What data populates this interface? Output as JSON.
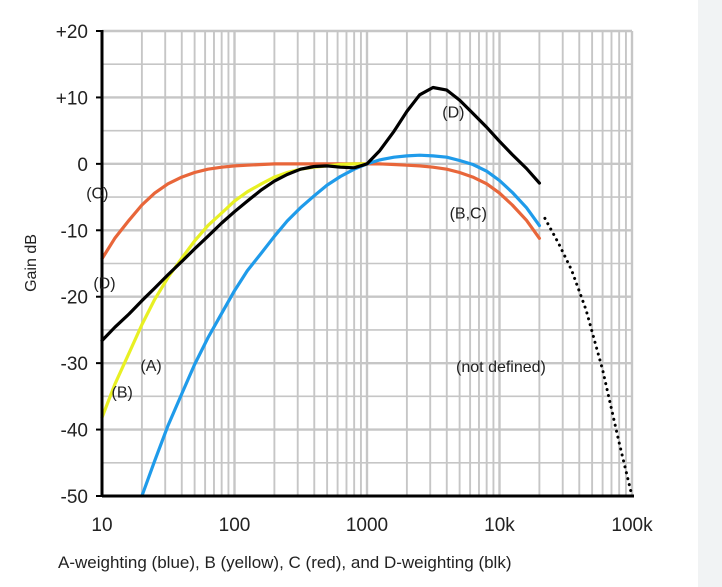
{
  "chart_data": {
    "type": "line",
    "xscale": "log",
    "xlim": [
      10,
      100000
    ],
    "ylim": [
      -50,
      20
    ],
    "ylabel": "Gain dB",
    "xlabel": "A-weighting (blue), B (yellow), C (red), and D-weighting (blk)",
    "grid": true,
    "x_ticks": [
      {
        "value": 10,
        "label": "10"
      },
      {
        "value": 100,
        "label": "100"
      },
      {
        "value": 1000,
        "label": "1000"
      },
      {
        "value": 10000,
        "label": "10k"
      },
      {
        "value": 100000,
        "label": "100k"
      }
    ],
    "y_ticks": [
      {
        "value": 20,
        "label": "+20"
      },
      {
        "value": 10,
        "label": "+10"
      },
      {
        "value": 0,
        "label": "0"
      },
      {
        "value": -10,
        "label": "-10"
      },
      {
        "value": -20,
        "label": "-20"
      },
      {
        "value": -30,
        "label": "-30"
      },
      {
        "value": -40,
        "label": "-40"
      },
      {
        "value": -50,
        "label": "-50"
      }
    ],
    "series": [
      {
        "name": "A-weighting",
        "color": "#1f9bea",
        "style": "solid",
        "points": [
          [
            20,
            -50
          ],
          [
            25,
            -44.7
          ],
          [
            31.5,
            -39.4
          ],
          [
            40,
            -34.6
          ],
          [
            50,
            -30.2
          ],
          [
            63,
            -26.2
          ],
          [
            80,
            -22.5
          ],
          [
            100,
            -19.1
          ],
          [
            125,
            -16.1
          ],
          [
            160,
            -13.4
          ],
          [
            200,
            -10.9
          ],
          [
            250,
            -8.6
          ],
          [
            315,
            -6.6
          ],
          [
            400,
            -4.8
          ],
          [
            500,
            -3.2
          ],
          [
            630,
            -1.9
          ],
          [
            800,
            -0.8
          ],
          [
            1000,
            0
          ],
          [
            1250,
            0.6
          ],
          [
            1600,
            1.0
          ],
          [
            2000,
            1.2
          ],
          [
            2500,
            1.3
          ],
          [
            3150,
            1.2
          ],
          [
            4000,
            1.0
          ],
          [
            5000,
            0.5
          ],
          [
            6300,
            -0.1
          ],
          [
            8000,
            -1.1
          ],
          [
            10000,
            -2.5
          ],
          [
            12500,
            -4.3
          ],
          [
            16000,
            -6.6
          ],
          [
            20000,
            -9.3
          ]
        ]
      },
      {
        "name": "B-weighting",
        "color": "#e8f023",
        "style": "solid",
        "points": [
          [
            10,
            -38.2
          ],
          [
            12.5,
            -33.2
          ],
          [
            16,
            -28.5
          ],
          [
            20,
            -24.2
          ],
          [
            25,
            -20.4
          ],
          [
            31.5,
            -17.1
          ],
          [
            40,
            -14.2
          ],
          [
            50,
            -11.6
          ],
          [
            63,
            -9.3
          ],
          [
            80,
            -7.4
          ],
          [
            100,
            -5.6
          ],
          [
            125,
            -4.2
          ],
          [
            160,
            -3.0
          ],
          [
            200,
            -2.0
          ],
          [
            250,
            -1.3
          ],
          [
            315,
            -0.8
          ],
          [
            400,
            -0.5
          ],
          [
            500,
            -0.3
          ],
          [
            630,
            -0.1
          ],
          [
            800,
            0
          ],
          [
            1000,
            0
          ]
        ]
      },
      {
        "name": "C-weighting",
        "color": "#e8663a",
        "style": "solid",
        "points": [
          [
            10,
            -14.3
          ],
          [
            12.5,
            -11.2
          ],
          [
            16,
            -8.5
          ],
          [
            20,
            -6.2
          ],
          [
            25,
            -4.4
          ],
          [
            31.5,
            -3.0
          ],
          [
            40,
            -2.0
          ],
          [
            50,
            -1.3
          ],
          [
            63,
            -0.8
          ],
          [
            80,
            -0.5
          ],
          [
            100,
            -0.3
          ],
          [
            125,
            -0.2
          ],
          [
            160,
            -0.1
          ],
          [
            200,
            0
          ],
          [
            300,
            0
          ],
          [
            500,
            0
          ],
          [
            800,
            0
          ],
          [
            1000,
            0
          ],
          [
            1250,
            0
          ],
          [
            1600,
            -0.1
          ],
          [
            2000,
            -0.2
          ],
          [
            2500,
            -0.3
          ],
          [
            3150,
            -0.5
          ],
          [
            4000,
            -0.8
          ],
          [
            5000,
            -1.3
          ],
          [
            6300,
            -2.0
          ],
          [
            8000,
            -3.0
          ],
          [
            10000,
            -4.4
          ],
          [
            12500,
            -6.2
          ],
          [
            16000,
            -8.5
          ],
          [
            20000,
            -11.2
          ]
        ]
      },
      {
        "name": "D-weighting",
        "color": "#000000",
        "style": "solid",
        "points": [
          [
            10,
            -26.6
          ],
          [
            12.5,
            -24.6
          ],
          [
            16,
            -22.6
          ],
          [
            20,
            -20.6
          ],
          [
            25,
            -18.7
          ],
          [
            31.5,
            -16.7
          ],
          [
            40,
            -14.7
          ],
          [
            50,
            -12.8
          ],
          [
            63,
            -10.9
          ],
          [
            80,
            -8.9
          ],
          [
            100,
            -7.2
          ],
          [
            125,
            -5.6
          ],
          [
            160,
            -3.9
          ],
          [
            200,
            -2.6
          ],
          [
            250,
            -1.6
          ],
          [
            315,
            -0.8
          ],
          [
            400,
            -0.4
          ],
          [
            500,
            -0.3
          ],
          [
            630,
            -0.5
          ],
          [
            800,
            -0.6
          ],
          [
            1000,
            0
          ],
          [
            1250,
            2.0
          ],
          [
            1600,
            4.9
          ],
          [
            2000,
            7.9
          ],
          [
            2500,
            10.4
          ],
          [
            3150,
            11.5
          ],
          [
            4000,
            11.1
          ],
          [
            5000,
            9.6
          ],
          [
            6300,
            7.6
          ],
          [
            8000,
            5.5
          ],
          [
            10000,
            3.4
          ],
          [
            12500,
            1.4
          ],
          [
            16000,
            -0.7
          ],
          [
            20000,
            -2.9
          ]
        ]
      },
      {
        "name": "not defined",
        "color": "#000000",
        "style": "dotted",
        "points": [
          [
            22000,
            -8.2
          ],
          [
            28000,
            -12.0
          ],
          [
            35000,
            -16.0
          ],
          [
            45000,
            -22.0
          ],
          [
            60000,
            -31.0
          ],
          [
            80000,
            -42.0
          ],
          [
            100000,
            -50.0
          ]
        ]
      }
    ],
    "annotations": [
      {
        "text": "(D)",
        "x": 3700,
        "y": 7
      },
      {
        "text": "(B,C)",
        "x": 4200,
        "y": -8.2
      },
      {
        "text": "(C)",
        "x": 7.6,
        "y": -5.2
      },
      {
        "text": "(D)",
        "x": 8.6,
        "y": -18.8
      },
      {
        "text": "(B)",
        "x": 11.8,
        "y": -35.2
      },
      {
        "text": "(A)",
        "x": 19.5,
        "y": -31.2
      },
      {
        "text": "(not defined)",
        "x": 4700,
        "y": -31.3
      }
    ]
  }
}
